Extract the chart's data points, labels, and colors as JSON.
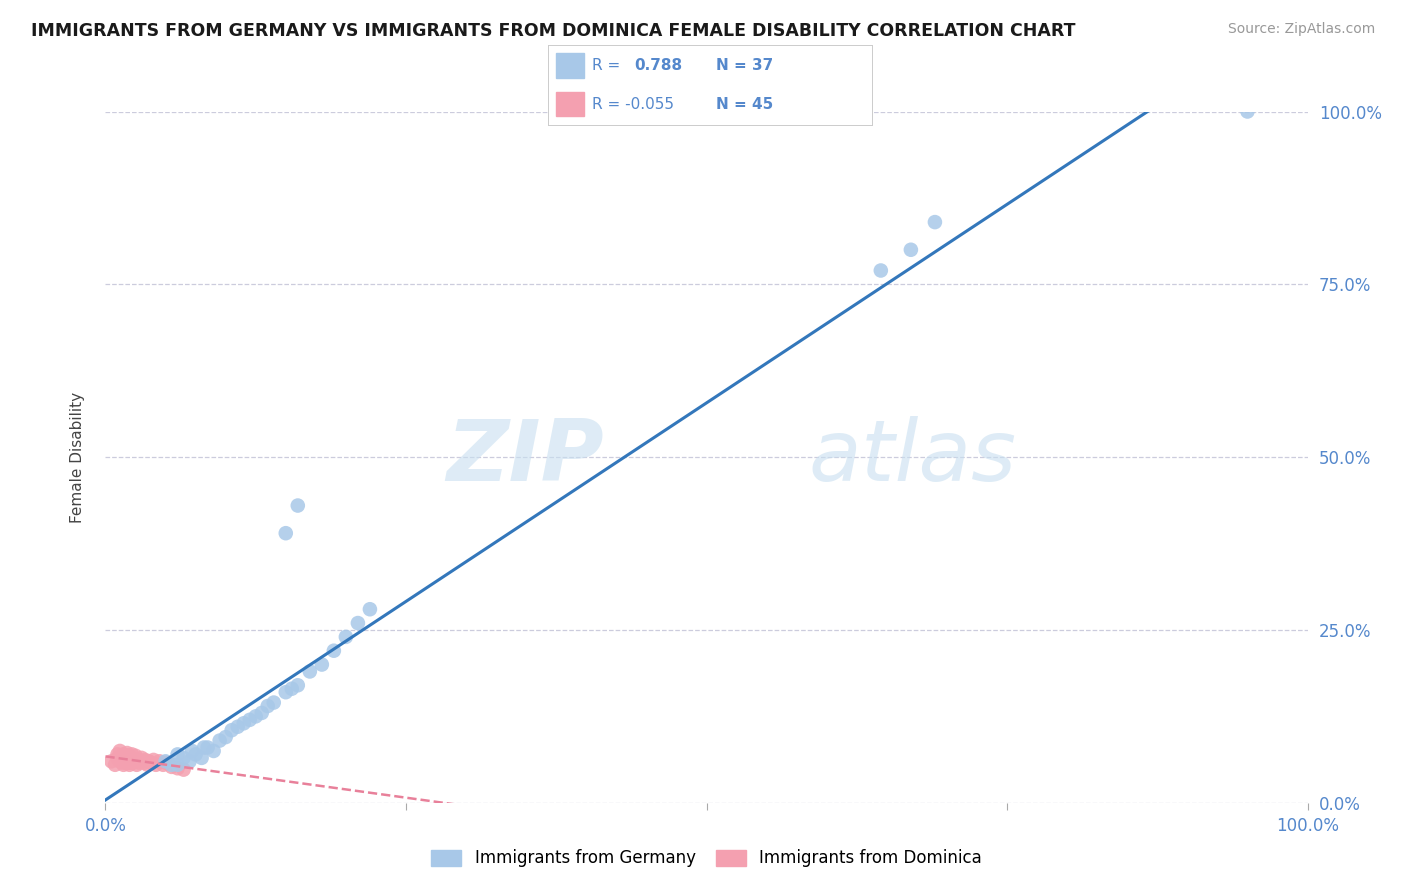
{
  "title": "IMMIGRANTS FROM GERMANY VS IMMIGRANTS FROM DOMINICA FEMALE DISABILITY CORRELATION CHART",
  "source": "Source: ZipAtlas.com",
  "ylabel": "Female Disability",
  "xlim": [
    0.0,
    1.0
  ],
  "ylim": [
    0.0,
    1.0
  ],
  "ytick_positions": [
    0.0,
    0.25,
    0.5,
    0.75,
    1.0
  ],
  "xtick_positions": [
    0.0,
    0.25,
    0.5,
    0.75,
    1.0
  ],
  "germany_R": 0.788,
  "germany_N": 37,
  "dominica_R": -0.055,
  "dominica_N": 45,
  "germany_color": "#a8c8e8",
  "dominica_color": "#f4a0b0",
  "germany_line_color": "#3377bb",
  "dominica_line_color": "#e8809a",
  "watermark_zip": "ZIP",
  "watermark_atlas": "atlas",
  "background_color": "#ffffff",
  "grid_color": "#ccccdd",
  "tick_color": "#5588cc",
  "germany_x": [
    0.05,
    0.055,
    0.06,
    0.06,
    0.065,
    0.07,
    0.072,
    0.075,
    0.08,
    0.082,
    0.085,
    0.09,
    0.095,
    0.1,
    0.105,
    0.11,
    0.115,
    0.12,
    0.125,
    0.13,
    0.135,
    0.14,
    0.15,
    0.155,
    0.16,
    0.17,
    0.18,
    0.19,
    0.2,
    0.21,
    0.22,
    0.15,
    0.16,
    0.645,
    0.67,
    0.69,
    0.95
  ],
  "germany_y": [
    0.06,
    0.055,
    0.055,
    0.07,
    0.065,
    0.06,
    0.075,
    0.07,
    0.065,
    0.08,
    0.08,
    0.075,
    0.09,
    0.095,
    0.105,
    0.11,
    0.115,
    0.12,
    0.125,
    0.13,
    0.14,
    0.145,
    0.16,
    0.165,
    0.17,
    0.19,
    0.2,
    0.22,
    0.24,
    0.26,
    0.28,
    0.39,
    0.43,
    0.77,
    0.8,
    0.84,
    1.0
  ],
  "dominica_x": [
    0.005,
    0.008,
    0.01,
    0.01,
    0.012,
    0.012,
    0.014,
    0.015,
    0.015,
    0.015,
    0.016,
    0.017,
    0.018,
    0.018,
    0.018,
    0.019,
    0.02,
    0.02,
    0.02,
    0.021,
    0.021,
    0.022,
    0.022,
    0.023,
    0.024,
    0.025,
    0.025,
    0.026,
    0.027,
    0.028,
    0.03,
    0.03,
    0.032,
    0.033,
    0.035,
    0.036,
    0.038,
    0.04,
    0.042,
    0.045,
    0.048,
    0.05,
    0.055,
    0.06,
    0.065
  ],
  "dominica_y": [
    0.06,
    0.055,
    0.065,
    0.07,
    0.06,
    0.075,
    0.058,
    0.065,
    0.07,
    0.055,
    0.062,
    0.068,
    0.058,
    0.065,
    0.072,
    0.06,
    0.055,
    0.062,
    0.068,
    0.058,
    0.065,
    0.06,
    0.07,
    0.058,
    0.063,
    0.06,
    0.068,
    0.055,
    0.062,
    0.058,
    0.06,
    0.065,
    0.058,
    0.062,
    0.055,
    0.06,
    0.058,
    0.062,
    0.055,
    0.06,
    0.055,
    0.058,
    0.052,
    0.05,
    0.048
  ]
}
